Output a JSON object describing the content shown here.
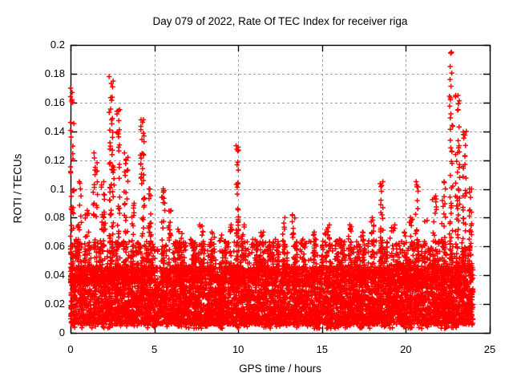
{
  "chart_data": {
    "type": "scatter",
    "title": "Day 079 of 2022, Rate Of TEC Index for receiver riga",
    "xlabel": "GPS time / hours",
    "ylabel": "ROTI / TECUs",
    "xlim": [
      0,
      25
    ],
    "ylim": [
      0,
      0.2
    ],
    "x_ticks": [
      {
        "label": "0",
        "value": 0
      },
      {
        "label": "5",
        "value": 5
      },
      {
        "label": "10",
        "value": 10
      },
      {
        "label": "15",
        "value": 15
      },
      {
        "label": "20",
        "value": 20
      },
      {
        "label": "25",
        "value": 25
      }
    ],
    "y_ticks": [
      {
        "label": "0",
        "value": 0
      },
      {
        "label": "0.02",
        "value": 0.02
      },
      {
        "label": "0.04",
        "value": 0.04
      },
      {
        "label": "0.06",
        "value": 0.06
      },
      {
        "label": "0.08",
        "value": 0.08
      },
      {
        "label": "0.1",
        "value": 0.1
      },
      {
        "label": "0.12",
        "value": 0.12
      },
      {
        "label": "0.14",
        "value": 0.14
      },
      {
        "label": "0.16",
        "value": 0.16
      },
      {
        "label": "0.18",
        "value": 0.18
      },
      {
        "label": "0.2",
        "value": 0.2
      }
    ],
    "grid": true,
    "legend": "none",
    "marker": "+",
    "marker_color": "#ff0000",
    "grid_color": "#a0a0a0",
    "border_color": "#000000",
    "background_color": "#ffffff",
    "data_time_span_hours": [
      0,
      24
    ],
    "scatter_model": {
      "seed": 79,
      "baseline": {
        "n": 6500,
        "y_min": 0.006,
        "y_max": 0.046,
        "exponent": 1.25
      },
      "bottom_fringe": {
        "n": 350,
        "y_min": 0.003,
        "y_max": 0.01
      },
      "mid_columns": {
        "n_columns": 260,
        "points_min": 2,
        "points_max": 6,
        "y_min": 0.042,
        "y_max": 0.064
      },
      "spike_base_y": 0.035,
      "spikes": [
        {
          "t": 0.08,
          "w": 0.25,
          "max": 0.17,
          "n": 70
        },
        {
          "t": 0.5,
          "w": 0.35,
          "max": 0.105,
          "n": 45
        },
        {
          "t": 1.0,
          "w": 0.25,
          "max": 0.085,
          "n": 30
        },
        {
          "t": 1.5,
          "w": 0.3,
          "max": 0.125,
          "n": 45
        },
        {
          "t": 1.95,
          "w": 0.25,
          "max": 0.105,
          "n": 40
        },
        {
          "t": 2.45,
          "w": 0.3,
          "max": 0.178,
          "n": 85
        },
        {
          "t": 2.85,
          "w": 0.2,
          "max": 0.155,
          "n": 45
        },
        {
          "t": 3.3,
          "w": 0.25,
          "max": 0.125,
          "n": 40
        },
        {
          "t": 3.75,
          "w": 0.2,
          "max": 0.09,
          "n": 30
        },
        {
          "t": 4.3,
          "w": 0.3,
          "max": 0.148,
          "n": 70
        },
        {
          "t": 4.75,
          "w": 0.2,
          "max": 0.1,
          "n": 35
        },
        {
          "t": 5.5,
          "w": 0.25,
          "max": 0.1,
          "n": 40
        },
        {
          "t": 5.9,
          "w": 0.2,
          "max": 0.085,
          "n": 30
        },
        {
          "t": 6.5,
          "w": 0.3,
          "max": 0.072,
          "n": 28
        },
        {
          "t": 7.2,
          "w": 0.3,
          "max": 0.065,
          "n": 25
        },
        {
          "t": 7.8,
          "w": 0.25,
          "max": 0.075,
          "n": 25
        },
        {
          "t": 8.45,
          "w": 0.3,
          "max": 0.07,
          "n": 25
        },
        {
          "t": 9.05,
          "w": 0.3,
          "max": 0.068,
          "n": 25
        },
        {
          "t": 9.55,
          "w": 0.2,
          "max": 0.075,
          "n": 25
        },
        {
          "t": 9.95,
          "w": 0.18,
          "max": 0.13,
          "n": 55
        },
        {
          "t": 10.3,
          "w": 0.2,
          "max": 0.075,
          "n": 25
        },
        {
          "t": 10.9,
          "w": 0.3,
          "max": 0.065,
          "n": 25
        },
        {
          "t": 11.5,
          "w": 0.3,
          "max": 0.07,
          "n": 25
        },
        {
          "t": 12.1,
          "w": 0.25,
          "max": 0.065,
          "n": 22
        },
        {
          "t": 12.75,
          "w": 0.2,
          "max": 0.08,
          "n": 30
        },
        {
          "t": 13.3,
          "w": 0.2,
          "max": 0.082,
          "n": 30
        },
        {
          "t": 13.9,
          "w": 0.3,
          "max": 0.065,
          "n": 25
        },
        {
          "t": 14.6,
          "w": 0.3,
          "max": 0.07,
          "n": 25
        },
        {
          "t": 15.3,
          "w": 0.3,
          "max": 0.075,
          "n": 30
        },
        {
          "t": 16.0,
          "w": 0.3,
          "max": 0.065,
          "n": 25
        },
        {
          "t": 16.7,
          "w": 0.25,
          "max": 0.075,
          "n": 27
        },
        {
          "t": 17.4,
          "w": 0.3,
          "max": 0.07,
          "n": 26
        },
        {
          "t": 18.0,
          "w": 0.25,
          "max": 0.08,
          "n": 30
        },
        {
          "t": 18.55,
          "w": 0.18,
          "max": 0.105,
          "n": 38
        },
        {
          "t": 19.2,
          "w": 0.3,
          "max": 0.075,
          "n": 30
        },
        {
          "t": 19.85,
          "w": 0.25,
          "max": 0.07,
          "n": 30
        },
        {
          "t": 20.3,
          "w": 0.2,
          "max": 0.08,
          "n": 30
        },
        {
          "t": 20.65,
          "w": 0.15,
          "max": 0.105,
          "n": 35
        },
        {
          "t": 21.2,
          "w": 0.3,
          "max": 0.078,
          "n": 30
        },
        {
          "t": 21.7,
          "w": 0.25,
          "max": 0.095,
          "n": 38
        },
        {
          "t": 22.25,
          "w": 0.25,
          "max": 0.105,
          "n": 45
        },
        {
          "t": 22.7,
          "w": 0.2,
          "max": 0.195,
          "n": 60
        },
        {
          "t": 23.1,
          "w": 0.3,
          "max": 0.165,
          "n": 80
        },
        {
          "t": 23.5,
          "w": 0.2,
          "max": 0.14,
          "n": 50
        },
        {
          "t": 23.85,
          "w": 0.15,
          "max": 0.1,
          "n": 40
        }
      ]
    }
  }
}
